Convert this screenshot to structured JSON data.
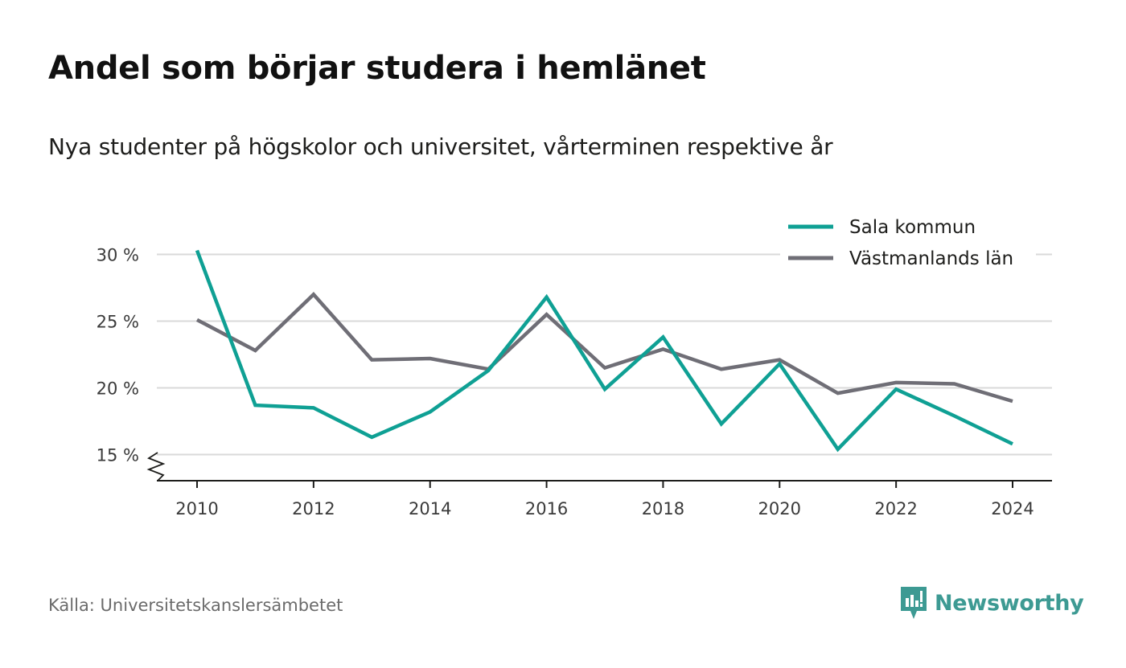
{
  "title": "Andel som börjar studera i hemlänet",
  "subtitle": "Nya studenter på högskolor och universitet, vårterminen respektive år",
  "source": "Källa: Universitetskanslersämbetet",
  "brand": {
    "name": "Newsworthy",
    "icon": "newsworthy-logo-icon",
    "color": "#3d9a93"
  },
  "chart_data": {
    "type": "line",
    "x": [
      2010,
      2011,
      2012,
      2013,
      2014,
      2015,
      2016,
      2017,
      2018,
      2019,
      2020,
      2021,
      2022,
      2023,
      2024
    ],
    "series": [
      {
        "name": "Sala kommun",
        "color": "#0fa094",
        "values": [
          30.3,
          18.7,
          18.5,
          16.3,
          18.2,
          21.3,
          26.8,
          19.9,
          23.8,
          17.3,
          21.8,
          15.4,
          19.9,
          17.9,
          15.8
        ]
      },
      {
        "name": "Västmanlands län",
        "color": "#6f6e76",
        "values": [
          25.1,
          22.8,
          27.0,
          22.1,
          22.2,
          21.4,
          25.5,
          21.5,
          22.9,
          21.4,
          22.1,
          19.6,
          20.4,
          20.3,
          19.0
        ]
      }
    ],
    "ylim": [
      13,
      30
    ],
    "yticks": [
      15,
      20,
      25,
      30
    ],
    "ytick_labels": [
      "15 %",
      "20 %",
      "25 %",
      "30 %"
    ],
    "xticks": [
      2010,
      2012,
      2014,
      2016,
      2018,
      2020,
      2022,
      2024
    ],
    "xtick_labels": [
      "2010",
      "2012",
      "2014",
      "2016",
      "2018",
      "2020",
      "2022",
      "2024"
    ],
    "xlabel": "",
    "ylabel": "",
    "grid": true,
    "axis_break": true,
    "legend": "top-right"
  }
}
